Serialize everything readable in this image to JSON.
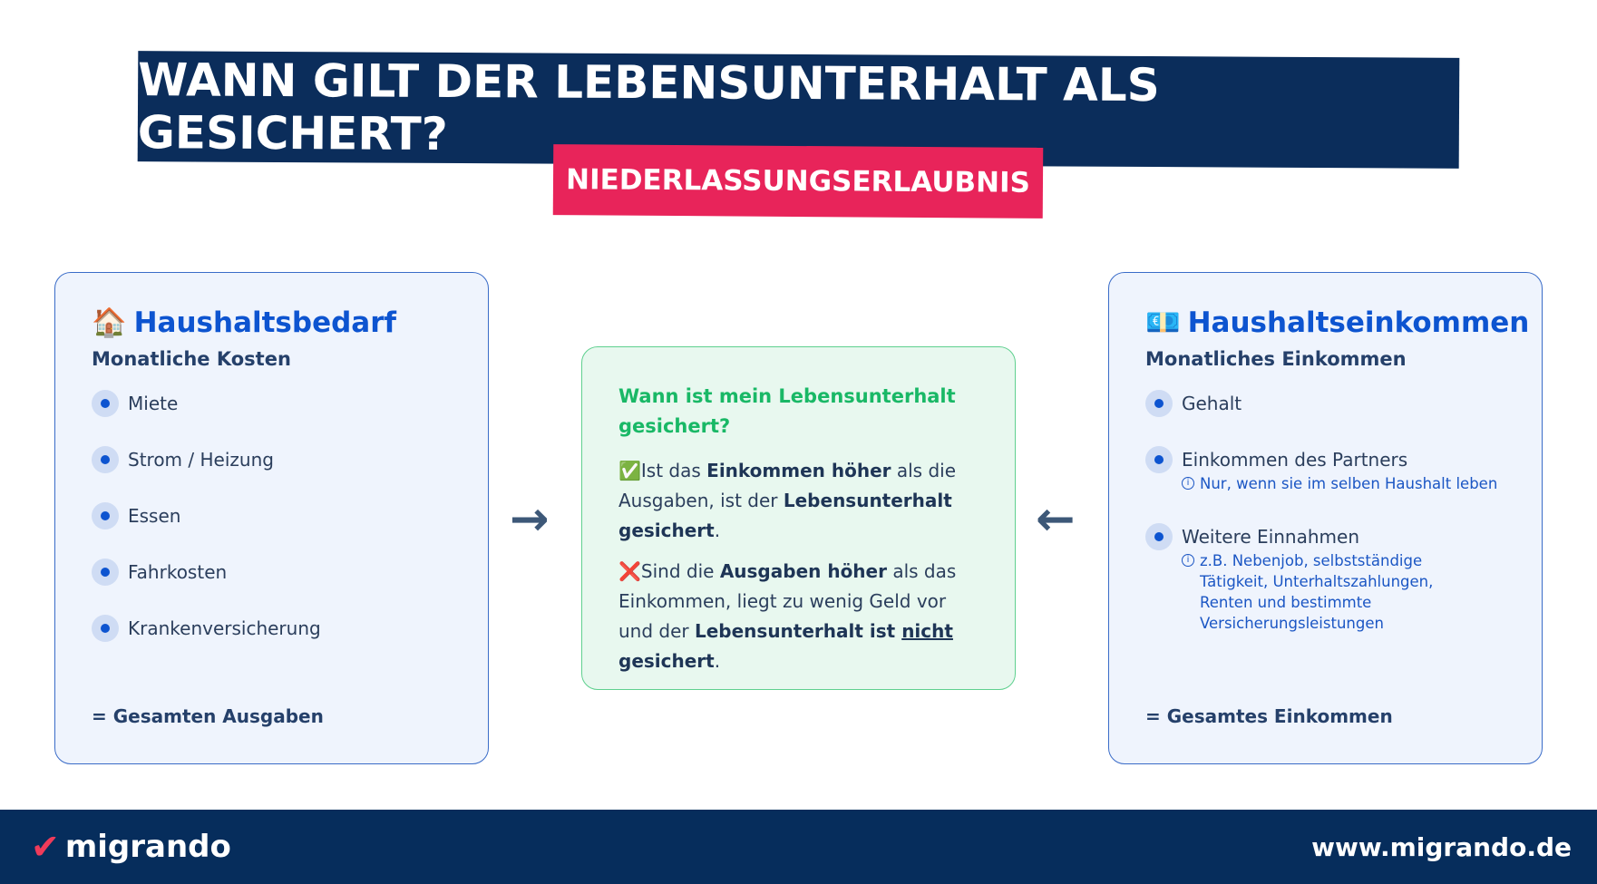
{
  "header": {
    "title": "WANN GILT DER LEBENSUNTERHALT ALS GESICHERT?",
    "subtitle": "NIEDERLASSUNGSERLAUBNIS"
  },
  "left": {
    "emoji": "🏠",
    "title": "Haushaltsbedarf",
    "subtitle": "Monatliche Kosten",
    "items": [
      "Miete",
      "Strom / Heizung",
      "Essen",
      "Fahrkosten",
      "Krankenversicherung"
    ],
    "total": "= Gesamten Ausgaben"
  },
  "right": {
    "emoji": "💶",
    "title": "Haushaltseinkommen",
    "subtitle": "Monatliches Einkommen",
    "items": [
      {
        "label": "Gehalt"
      },
      {
        "label": "Einkommen des Partners",
        "note": "Nur, wenn sie im selben Haushalt leben"
      },
      {
        "label": "Weitere Einnahmen",
        "note": "z.B. Nebenjob, selbstständige Tätigkeit, Unterhaltszahlungen, Renten und bestimmte Versicherungsleistungen"
      }
    ],
    "total": "= Gesamtes Einkommen"
  },
  "center": {
    "question": "Wann ist mein Lebensunterhalt gesichert?",
    "yes": {
      "icon": "✅",
      "t1": "Ist das ",
      "b1": "Einkommen höher",
      "t2": " als die Ausgaben, ist der ",
      "b2": "Lebensunterhalt gesichert",
      "t3": "."
    },
    "no": {
      "icon": "❌",
      "t1": "Sind die ",
      "b1": "Ausgaben höher",
      "t2": " als das Einkommen, liegt zu wenig Geld vor und der ",
      "b2": "Lebensunterhalt ist ",
      "u": "nicht",
      "b3": " gesichert",
      "t3": "."
    }
  },
  "arrows": {
    "left": "→",
    "right": "←"
  },
  "footer": {
    "brand": "migrando",
    "url": "www.migrando.de"
  },
  "colors": {
    "navy": "#0b2d5b",
    "pink": "#e8245a",
    "blue": "#0d54d0",
    "green": "#19b866"
  }
}
